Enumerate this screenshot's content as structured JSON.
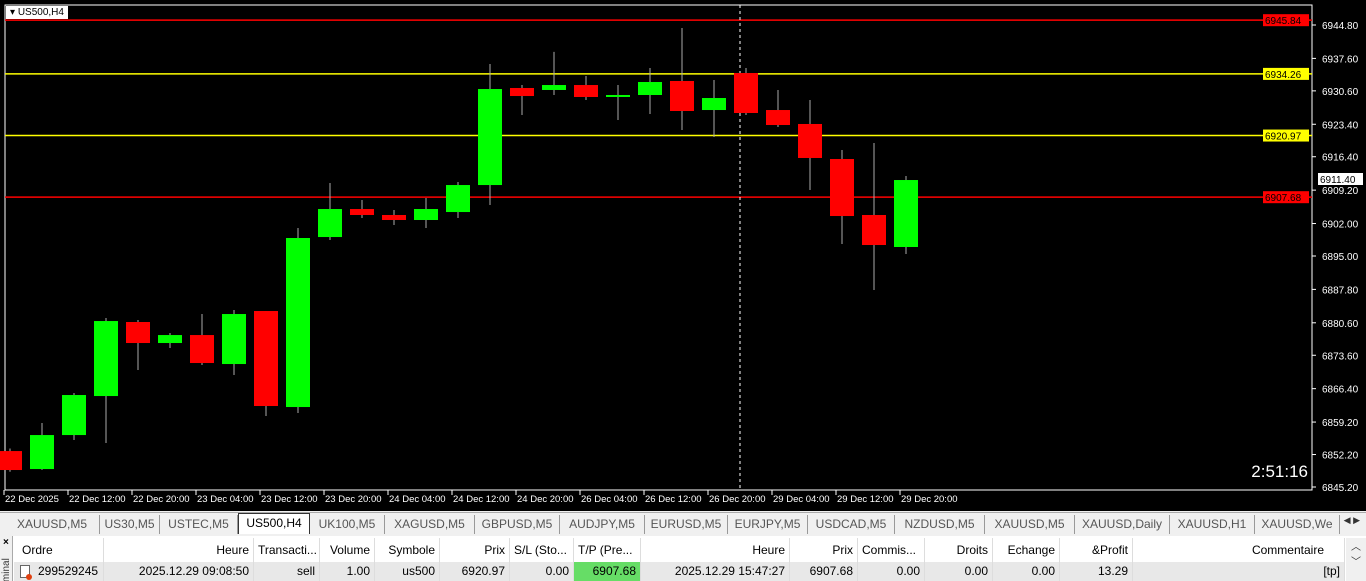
{
  "chart": {
    "title": "US500,H4",
    "timer": "2:51:16",
    "crosshair_time": "26 Dec 20:00"
  },
  "chart_data": {
    "type": "candlestick",
    "symbol": "US500",
    "timeframe": "H4",
    "ylim": [
      6845.2,
      6944.8
    ],
    "price_ticks": [
      "6944.80",
      "6937.60",
      "6930.60",
      "6923.40",
      "6916.40",
      "6909.20",
      "6902.00",
      "6895.00",
      "6887.80",
      "6880.60",
      "6873.60",
      "6866.40",
      "6859.20",
      "6852.20",
      "6845.20"
    ],
    "time_ticks": [
      "22 Dec 2025",
      "22 Dec 12:00",
      "22 Dec 20:00",
      "23 Dec 04:00",
      "23 Dec 12:00",
      "23 Dec 20:00",
      "24 Dec 04:00",
      "24 Dec 12:00",
      "24 Dec 20:00",
      "26 Dec 04:00",
      "26 Dec 12:00",
      "26 Dec 20:00",
      "29 Dec 04:00",
      "29 Dec 12:00",
      "29 Dec 20:00"
    ],
    "candles": [
      [
        6852.95,
        6853.5,
        6848.5,
        6848.86
      ],
      [
        6849.07,
        6858.99,
        6848.9,
        6856.4
      ],
      [
        6856.4,
        6865.46,
        6855.33,
        6865.03
      ],
      [
        6864.81,
        6881.63,
        6854.68,
        6880.98
      ],
      [
        6880.77,
        6881.2,
        6870.42,
        6876.24
      ],
      [
        6876.24,
        6878.39,
        6875.16,
        6877.96
      ],
      [
        6877.96,
        6882.49,
        6871.5,
        6871.93
      ],
      [
        6871.71,
        6883.35,
        6869.34,
        6882.49
      ],
      [
        6883.14,
        6883.14,
        6860.5,
        6862.66
      ],
      [
        6862.44,
        6901.03,
        6861.15,
        6898.88
      ],
      [
        6899.09,
        6910.74,
        6898.44,
        6905.13
      ],
      [
        6905.13,
        6907.07,
        6903.19,
        6903.84
      ],
      [
        6903.84,
        6904.91,
        6901.68,
        6902.76
      ],
      [
        6902.76,
        6907.5,
        6901.03,
        6905.13
      ],
      [
        6904.48,
        6910.95,
        6903.19,
        6910.3
      ],
      [
        6910.3,
        6936.39,
        6906.0,
        6931.0
      ],
      [
        6931.22,
        6931.86,
        6925.4,
        6929.49
      ],
      [
        6930.79,
        6939.0,
        6929.71,
        6931.86
      ],
      [
        6931.86,
        6933.8,
        6928.63,
        6929.28
      ],
      [
        6929.28,
        6931.86,
        6924.32,
        6929.71
      ],
      [
        6929.71,
        6935.53,
        6925.61,
        6932.51
      ],
      [
        6932.73,
        6944.15,
        6922.16,
        6926.26
      ],
      [
        6926.47,
        6932.94,
        6920.65,
        6929.06
      ],
      [
        6934.45,
        6935.53,
        6925.4,
        6925.83
      ],
      [
        6926.47,
        6930.79,
        6922.81,
        6923.24
      ],
      [
        6923.46,
        6928.63,
        6909.23,
        6916.13
      ],
      [
        6915.91,
        6917.85,
        6897.58,
        6903.62
      ],
      [
        6903.84,
        6919.36,
        6887.67,
        6897.37
      ],
      [
        6896.94,
        6912.25,
        6895.43,
        6911.38
      ]
    ],
    "candle_format": [
      "open",
      "high",
      "low",
      "close"
    ],
    "bull_color": "#00ff00",
    "bear_color": "#ff0000",
    "levels": [
      {
        "price": "6945.84",
        "color": "#ff0000"
      },
      {
        "price": "6934.26",
        "color": "#ffff00"
      },
      {
        "price": "6920.97",
        "color": "#ffff00"
      },
      {
        "price": "6907.68",
        "color": "#ff0000"
      }
    ],
    "current_price": "6911.40"
  },
  "tabs": [
    "XAUUSD,M5",
    "US30,M5",
    "USTEC,M5",
    "US500,H4",
    "UK100,M5",
    "XAGUSD,M5",
    "GBPUSD,M5",
    "AUDJPY,M5",
    "EURUSD,M5",
    "EURJPY,M5",
    "USDCAD,M5",
    "NZDUSD,M5",
    "XAUUSD,M5",
    "XAUUSD,Daily",
    "XAUUSD,H1",
    "XAUUSD,We"
  ],
  "active_tab": "US500,H4",
  "terminal": {
    "label": "Terminal",
    "columns": [
      "Ordre",
      "Heure",
      "Transacti...",
      "Volume",
      "Symbole",
      "Prix",
      "S/L (Sto...",
      "T/P (Pre...",
      "Heure",
      "Prix",
      "Commis...",
      "Droits",
      "Echange",
      "&Profit",
      "Commentaire"
    ],
    "rows": [
      [
        "299529245",
        "2025.12.29 09:08:50",
        "sell",
        "1.00",
        "us500",
        "6920.97",
        "0.00",
        "6907.68",
        "2025.12.29 15:47:27",
        "6907.68",
        "0.00",
        "0.00",
        "0.00",
        "13.29",
        "[tp]"
      ]
    ],
    "tp_highlight": "#66dd66"
  }
}
